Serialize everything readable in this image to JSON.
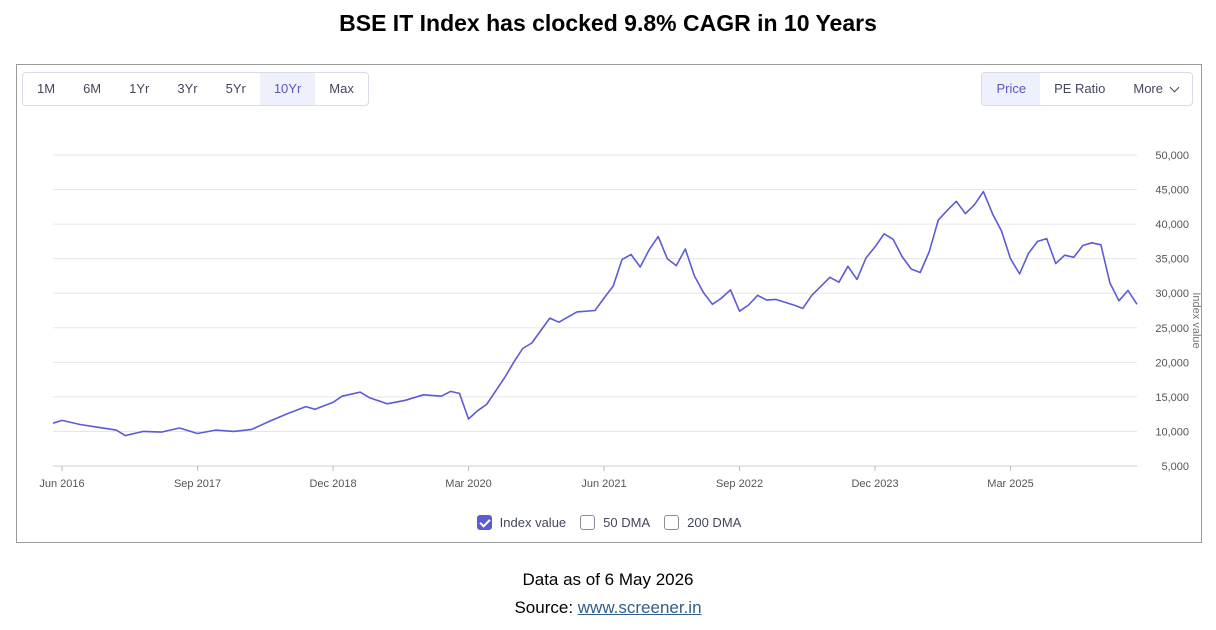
{
  "title": "BSE IT Index has clocked 9.8% CAGR in 10 Years",
  "range_buttons": [
    "1M",
    "6M",
    "1Yr",
    "3Yr",
    "5Yr",
    "10Yr",
    "Max"
  ],
  "range_active": "10Yr",
  "metric_buttons": [
    "Price",
    "PE Ratio",
    "More"
  ],
  "metric_active": "Price",
  "legend": {
    "index_value": "Index value",
    "dma50": "50 DMA",
    "dma200": "200 DMA"
  },
  "footer": {
    "data_as_of": "Data as of 6 May 2026",
    "source_label": "Source: ",
    "source_link": "www.screener.in"
  },
  "colors": {
    "line": "#5c5bd6",
    "grid": "#e6e6e6",
    "axis_text": "#555555",
    "active_bg": "#eef0fb"
  },
  "chart_data": {
    "type": "line",
    "ylabel": "Index value",
    "ylim": [
      5000,
      50000
    ],
    "yticks": [
      5000,
      10000,
      15000,
      20000,
      25000,
      30000,
      35000,
      40000,
      45000,
      50000
    ],
    "xtick_labels": [
      "Jun 2016",
      "Sep 2017",
      "Dec 2018",
      "Mar 2020",
      "Jun 2021",
      "Sep 2022",
      "Dec 2023",
      "Mar 2025"
    ],
    "xtick_dates": [
      "2016-06",
      "2017-09",
      "2018-12",
      "2020-03",
      "2021-06",
      "2022-09",
      "2023-12",
      "2025-03"
    ],
    "x_start": "2016-05",
    "x_end": "2026-05",
    "grid": true,
    "series": [
      {
        "name": "Index value",
        "points": [
          [
            "2016-05",
            11200
          ],
          [
            "2016-06",
            11600
          ],
          [
            "2016-08",
            11000
          ],
          [
            "2016-10",
            10600
          ],
          [
            "2016-12",
            10200
          ],
          [
            "2017-01",
            9400
          ],
          [
            "2017-03",
            10000
          ],
          [
            "2017-05",
            9900
          ],
          [
            "2017-07",
            10500
          ],
          [
            "2017-09",
            9700
          ],
          [
            "2017-11",
            10200
          ],
          [
            "2018-01",
            10000
          ],
          [
            "2018-03",
            10300
          ],
          [
            "2018-05",
            11500
          ],
          [
            "2018-07",
            12600
          ],
          [
            "2018-09",
            13600
          ],
          [
            "2018-10",
            13200
          ],
          [
            "2018-12",
            14200
          ],
          [
            "2019-01",
            15100
          ],
          [
            "2019-03",
            15700
          ],
          [
            "2019-04",
            14900
          ],
          [
            "2019-06",
            14000
          ],
          [
            "2019-08",
            14500
          ],
          [
            "2019-10",
            15300
          ],
          [
            "2019-12",
            15100
          ],
          [
            "2020-01",
            15800
          ],
          [
            "2020-02",
            15500
          ],
          [
            "2020-03",
            11800
          ],
          [
            "2020-04",
            13000
          ],
          [
            "2020-05",
            13900
          ],
          [
            "2020-07",
            17800
          ],
          [
            "2020-08",
            20000
          ],
          [
            "2020-09",
            22000
          ],
          [
            "2020-10",
            22800
          ],
          [
            "2020-12",
            26400
          ],
          [
            "2021-01",
            25800
          ],
          [
            "2021-03",
            27300
          ],
          [
            "2021-05",
            27500
          ],
          [
            "2021-06",
            29300
          ],
          [
            "2021-07",
            31000
          ],
          [
            "2021-08",
            34900
          ],
          [
            "2021-09",
            35600
          ],
          [
            "2021-10",
            33800
          ],
          [
            "2021-11",
            36300
          ],
          [
            "2021-12",
            38200
          ],
          [
            "2022-01",
            35000
          ],
          [
            "2022-02",
            34000
          ],
          [
            "2022-03",
            36400
          ],
          [
            "2022-04",
            32500
          ],
          [
            "2022-05",
            30100
          ],
          [
            "2022-06",
            28400
          ],
          [
            "2022-07",
            29300
          ],
          [
            "2022-08",
            30500
          ],
          [
            "2022-09",
            27400
          ],
          [
            "2022-10",
            28300
          ],
          [
            "2022-11",
            29700
          ],
          [
            "2022-12",
            29000
          ],
          [
            "2023-01",
            29100
          ],
          [
            "2023-03",
            28300
          ],
          [
            "2023-04",
            27800
          ],
          [
            "2023-05",
            29700
          ],
          [
            "2023-07",
            32300
          ],
          [
            "2023-08",
            31600
          ],
          [
            "2023-09",
            33900
          ],
          [
            "2023-10",
            32000
          ],
          [
            "2023-11",
            35100
          ],
          [
            "2023-12",
            36700
          ],
          [
            "2024-01",
            38600
          ],
          [
            "2024-02",
            37800
          ],
          [
            "2024-03",
            35300
          ],
          [
            "2024-04",
            33500
          ],
          [
            "2024-05",
            33000
          ],
          [
            "2024-06",
            36000
          ],
          [
            "2024-07",
            40600
          ],
          [
            "2024-08",
            42000
          ],
          [
            "2024-09",
            43300
          ],
          [
            "2024-10",
            41500
          ],
          [
            "2024-11",
            42800
          ],
          [
            "2024-12",
            44700
          ],
          [
            "2025-01",
            41500
          ],
          [
            "2025-02",
            39000
          ],
          [
            "2025-03",
            35000
          ],
          [
            "2025-04",
            32800
          ],
          [
            "2025-05",
            35800
          ],
          [
            "2025-06",
            37500
          ],
          [
            "2025-07",
            37900
          ],
          [
            "2025-08",
            34300
          ],
          [
            "2025-09",
            35500
          ],
          [
            "2025-10",
            35200
          ],
          [
            "2025-11",
            36900
          ],
          [
            "2025-12",
            37300
          ],
          [
            "2026-01",
            37000
          ],
          [
            "2026-02",
            31500
          ],
          [
            "2026-03",
            28900
          ],
          [
            "2026-04",
            30400
          ],
          [
            "2026-05",
            28400
          ]
        ]
      }
    ],
    "legend_position": "bottom-center"
  }
}
